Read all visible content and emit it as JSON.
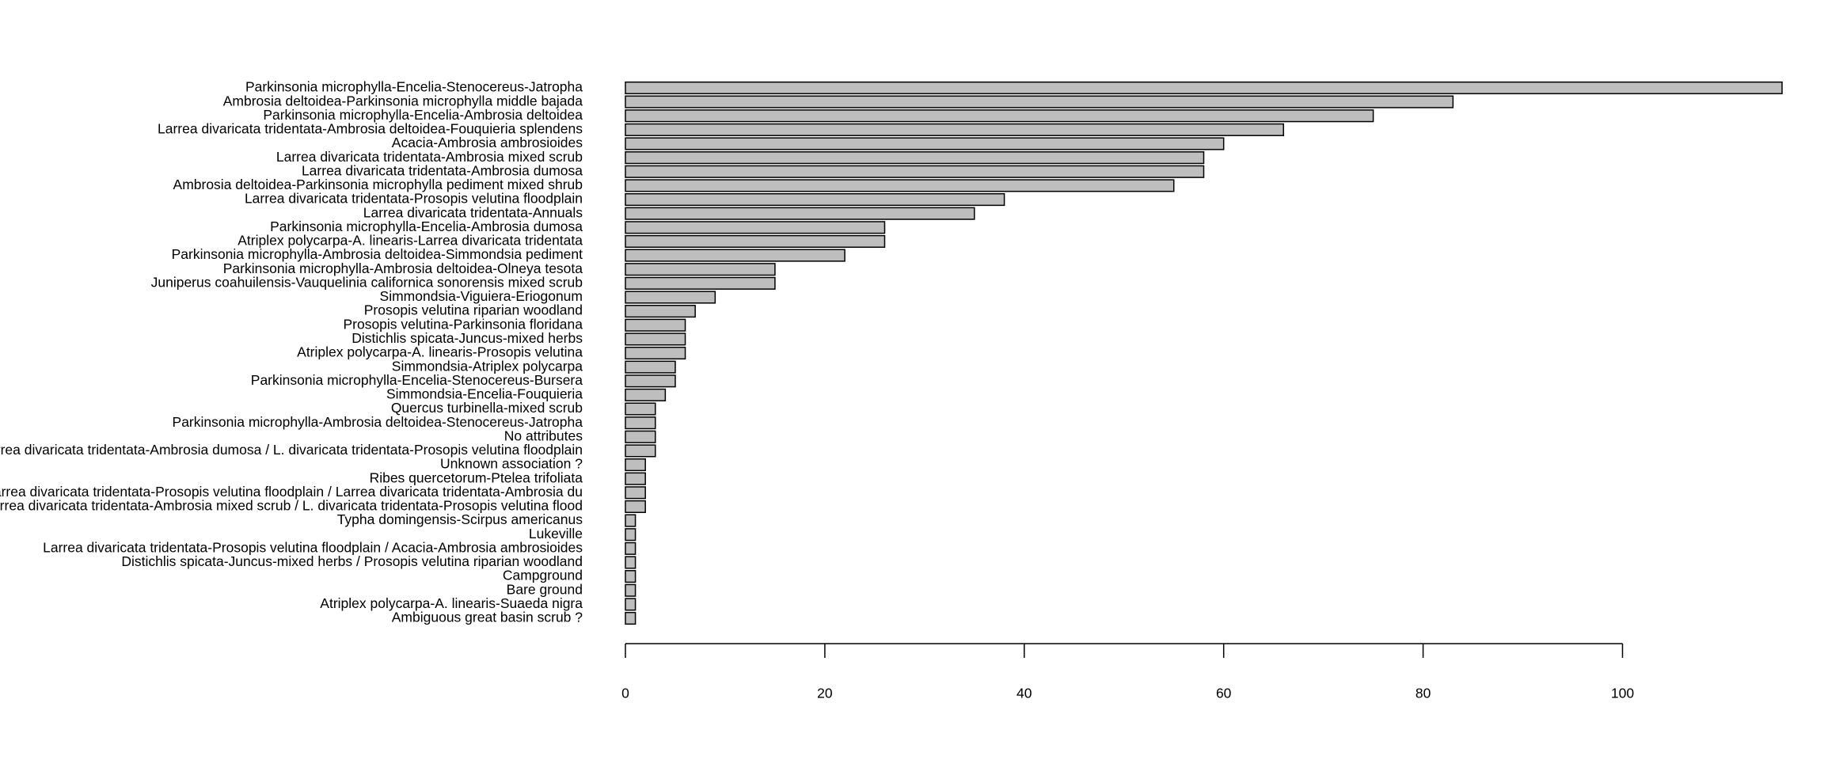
{
  "chart_data": {
    "type": "barh",
    "categories": [
      "Parkinsonia microphylla-Encelia-Stenocereus-Jatropha",
      "Ambrosia deltoidea-Parkinsonia microphylla middle bajada",
      "Parkinsonia microphylla-Encelia-Ambrosia deltoidea",
      "Larrea divaricata tridentata-Ambrosia deltoidea-Fouquieria splendens",
      "Acacia-Ambrosia ambrosioides",
      "Larrea divaricata tridentata-Ambrosia mixed scrub",
      "Larrea divaricata tridentata-Ambrosia dumosa",
      "Ambrosia deltoidea-Parkinsonia microphylla pediment mixed shrub",
      "Larrea divaricata tridentata-Prosopis velutina floodplain",
      "Larrea divaricata tridentata-Annuals",
      "Parkinsonia microphylla-Encelia-Ambrosia dumosa",
      "Atriplex polycarpa-A. linearis-Larrea divaricata tridentata",
      "Parkinsonia microphylla-Ambrosia deltoidea-Simmondsia pediment",
      "Parkinsonia microphylla-Ambrosia deltoidea-Olneya tesota",
      "Juniperus coahuilensis-Vauquelinia californica sonorensis mixed scrub",
      "Simmondsia-Viguiera-Eriogonum",
      "Prosopis velutina riparian woodland",
      "Prosopis velutina-Parkinsonia floridana",
      "Distichlis spicata-Juncus-mixed herbs",
      "Atriplex polycarpa-A. linearis-Prosopis velutina",
      "Simmondsia-Atriplex polycarpa",
      "Parkinsonia microphylla-Encelia-Stenocereus-Bursera",
      "Simmondsia-Encelia-Fouquieria",
      "Quercus turbinella-mixed scrub",
      "Parkinsonia microphylla-Ambrosia deltoidea-Stenocereus-Jatropha",
      "No attributes",
      "Larrea divaricata tridentata-Ambrosia dumosa / L. divaricata tridentata-Prosopis velutina floodplain",
      "Unknown association ?",
      "Ribes quercetorum-Ptelea trifoliata",
      "Larrea divaricata tridentata-Prosopis velutina floodplain / Larrea divaricata tridentata-Ambrosia du",
      "Larrea divaricata tridentata-Ambrosia mixed scrub / L. divaricata tridentata-Prosopis velutina flood",
      "Typha domingensis-Scirpus americanus",
      "Lukeville",
      "Larrea divaricata tridentata-Prosopis velutina floodplain / Acacia-Ambrosia ambrosioides",
      "Distichlis spicata-Juncus-mixed herbs / Prosopis velutina riparian woodland",
      "Campground",
      "Bare ground",
      "Atriplex polycarpa-A. linearis-Suaeda nigra",
      "Ambiguous great basin scrub ?"
    ],
    "values": [
      116,
      83,
      75,
      66,
      60,
      58,
      58,
      55,
      38,
      35,
      26,
      26,
      22,
      15,
      15,
      9,
      7,
      6,
      6,
      6,
      5,
      5,
      4,
      3,
      3,
      3,
      3,
      2,
      2,
      2,
      2,
      1,
      1,
      1,
      1,
      1,
      1,
      1,
      1
    ],
    "color": "#bebebe",
    "xlim": [
      0,
      116
    ],
    "xticks": [
      0,
      20,
      40,
      60,
      80,
      100
    ]
  }
}
